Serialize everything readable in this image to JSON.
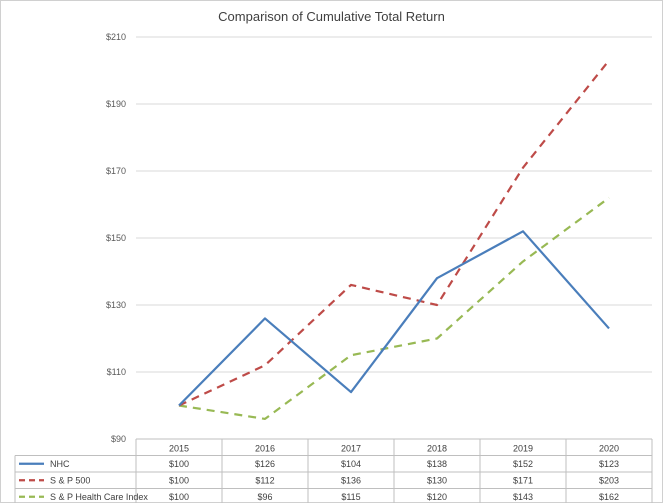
{
  "chart_data": {
    "type": "line",
    "title": "Comparison of Cumulative Total Return",
    "categories": [
      "2015",
      "2016",
      "2017",
      "2018",
      "2019",
      "2020"
    ],
    "ylim": [
      90,
      210
    ],
    "yticks": [
      90,
      110,
      130,
      150,
      170,
      190,
      210
    ],
    "ytick_labels": [
      "$90",
      "$110",
      "$130",
      "$150",
      "$170",
      "$190",
      "$210"
    ],
    "grid": true,
    "legend": "data-table",
    "series": [
      {
        "name": "NHC",
        "values": [
          100,
          126,
          104,
          138,
          152,
          123
        ],
        "labels": [
          "$100",
          "$126",
          "$104",
          "$138",
          "$152",
          "$123"
        ],
        "color": "#4a7ebb",
        "dash": "solid"
      },
      {
        "name": "S & P 500",
        "values": [
          100,
          112,
          136,
          130,
          171,
          203
        ],
        "labels": [
          "$100",
          "$112",
          "$136",
          "$130",
          "$171",
          "$203"
        ],
        "color": "#be4b48",
        "dash": "dashed"
      },
      {
        "name": "S & P Health Care Index",
        "values": [
          100,
          96,
          115,
          120,
          143,
          162
        ],
        "labels": [
          "$100",
          "$96",
          "$115",
          "$120",
          "$143",
          "$162"
        ],
        "color": "#98b954",
        "dash": "dashed"
      }
    ]
  }
}
